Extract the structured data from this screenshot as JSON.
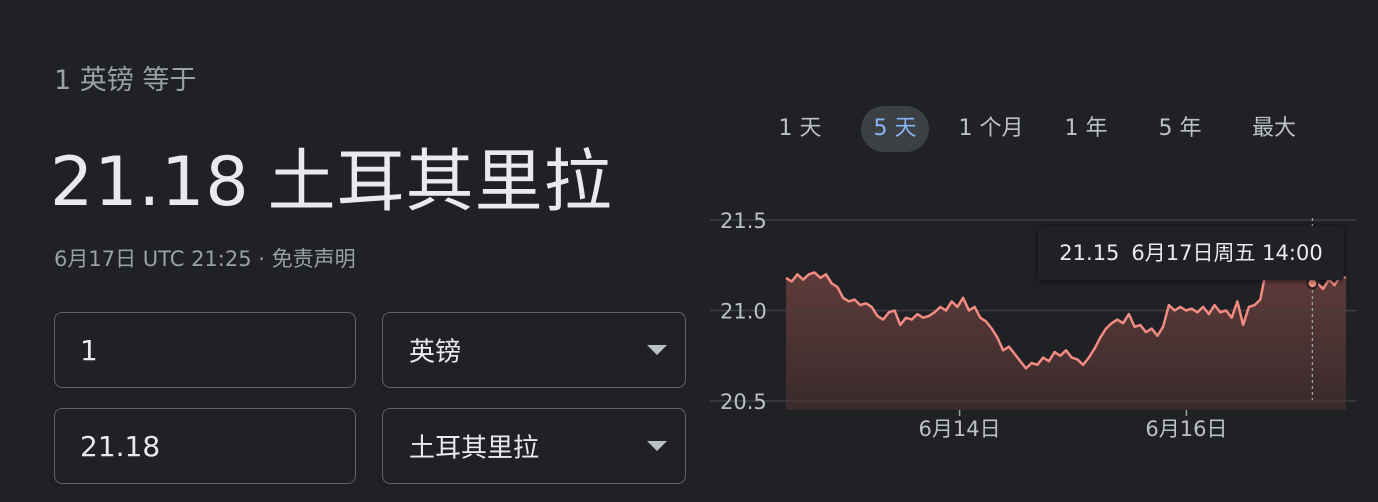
{
  "converter": {
    "equiv_label": "1 英镑 等于",
    "result_amount": "21.18",
    "result_unit": "土耳其里拉",
    "timestamp": "6月17日 UTC 21:25",
    "separator": " · ",
    "disclaimer": "免责声明",
    "from_amount": "1",
    "from_currency": "英镑",
    "to_amount": "21.18",
    "to_currency": "土耳其里拉"
  },
  "range_tabs": [
    "1 天",
    "5 天",
    "1 个月",
    "1 年",
    "5 年",
    "最大"
  ],
  "active_tab": "5 天",
  "tooltip": {
    "value": "21.15",
    "label": "6月17日周五 14:00"
  },
  "colors": {
    "line": "#f28b82",
    "accent": "#8ab4f8",
    "background": "#202124"
  },
  "chart_data": {
    "type": "area",
    "ylim": [
      20.5,
      21.5
    ],
    "y_ticks": [
      "21.5",
      "21.0",
      "20.5"
    ],
    "x_ticks": [
      "6月14日",
      "6月16日"
    ],
    "grid": true,
    "series": [
      {
        "values": [
          21.18,
          21.16,
          21.2,
          21.17,
          21.2,
          21.21,
          21.18,
          21.2,
          21.15,
          21.13,
          21.07,
          21.05,
          21.06,
          21.03,
          21.04,
          21.02,
          20.97,
          20.95,
          20.99,
          21.0,
          20.92,
          20.96,
          20.95,
          20.98,
          20.96,
          20.97,
          20.99,
          21.02,
          21.0,
          21.05,
          21.02,
          21.07,
          21.0,
          21.02,
          20.96,
          20.94,
          20.9,
          20.85,
          20.78,
          20.8,
          20.76,
          20.72,
          20.68,
          20.71,
          20.7,
          20.74,
          20.72,
          20.77,
          20.75,
          20.78,
          20.74,
          20.73,
          20.7,
          20.74,
          20.79,
          20.85,
          20.9,
          20.93,
          20.95,
          20.93,
          20.98,
          20.91,
          20.92,
          20.88,
          20.9,
          20.86,
          20.91,
          21.03,
          21.0,
          21.02,
          21.0,
          21.01,
          20.99,
          21.02,
          20.98,
          21.03,
          20.99,
          21.0,
          20.96,
          21.05,
          20.92,
          21.02,
          21.03,
          21.06,
          21.22,
          21.3,
          21.37,
          21.38,
          21.35,
          21.36,
          21.33,
          21.35,
          21.3,
          21.15,
          21.12,
          21.17,
          21.14,
          21.19,
          21.18
        ]
      }
    ],
    "tick_positions": [
      0.31,
      0.715
    ],
    "hover_position": 0.94
  }
}
